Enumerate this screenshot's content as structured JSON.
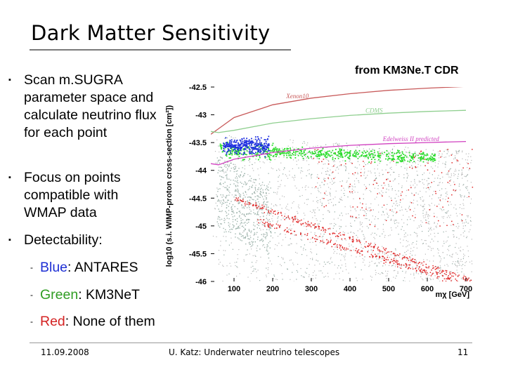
{
  "slide": {
    "title": "Dark Matter Sensitivity",
    "bullet_marker": "▪",
    "sub_marker": "-",
    "bullets": [
      "Scan m.SUGRA parameter space and calculate neutrino flux for each point",
      "Focus on points compatible with WMAP data",
      "Detectability:"
    ],
    "sub_items": [
      {
        "color_word": "Blue",
        "rest": ": ANTARES"
      },
      {
        "color_word": "Green",
        "rest": ": KM3NeT"
      },
      {
        "color_word": "Red",
        "rest": ": None of them"
      }
    ],
    "source": "from KM3Ne.T CDR"
  },
  "chart_data": {
    "type": "scatter",
    "ylabel": "log10 (s.i. WIMP-proton cross-section [cm²])",
    "xlabel": "mχ [GeV]",
    "x_ticks": [
      "100",
      "200",
      "300",
      "400",
      "500",
      "600",
      "700"
    ],
    "y_ticks": [
      "-42.5",
      "-43",
      "-43.5",
      "-44",
      "-44.5",
      "-45",
      "-45.5",
      "-46"
    ],
    "xlim": [
      40,
      720
    ],
    "ylim": [
      -46,
      -42.5
    ],
    "curve_labels": [
      "Xenon10",
      "CDMS",
      "Edelweiss II predicted"
    ],
    "curves": [
      {
        "name": "Xenon10",
        "color": "#c85a5a",
        "x": [
          40,
          60,
          100,
          200,
          300,
          400,
          500,
          600,
          700
        ],
        "y": [
          -43.35,
          -43.25,
          -43.05,
          -42.82,
          -42.7,
          -42.62,
          -42.56,
          -42.52,
          -42.49
        ]
      },
      {
        "name": "CDMS",
        "color": "#8fcf8f",
        "x": [
          40,
          60,
          100,
          200,
          300,
          400,
          500,
          600,
          700
        ],
        "y": [
          -43.3,
          -43.32,
          -43.28,
          -43.15,
          -43.07,
          -43.01,
          -42.97,
          -42.94,
          -42.92
        ]
      },
      {
        "name": "Edelweiss II predicted",
        "color": "#d040c0",
        "x": [
          40,
          60,
          100,
          200,
          300,
          400,
          500,
          600,
          700
        ],
        "y": [
          -43.88,
          -43.9,
          -43.8,
          -43.68,
          -43.6,
          -43.55,
          -43.52,
          -43.5,
          -43.48
        ]
      }
    ],
    "series": [
      {
        "name": "None of them",
        "color": "#d42323"
      },
      {
        "name": "KM3NeT",
        "color": "#22d422"
      },
      {
        "name": "ANTARES",
        "color": "#1e2fe0"
      }
    ]
  },
  "footer": {
    "date": "11.09.2008",
    "center": "U. Katz: Underwater neutrino telescopes",
    "page": "11"
  }
}
